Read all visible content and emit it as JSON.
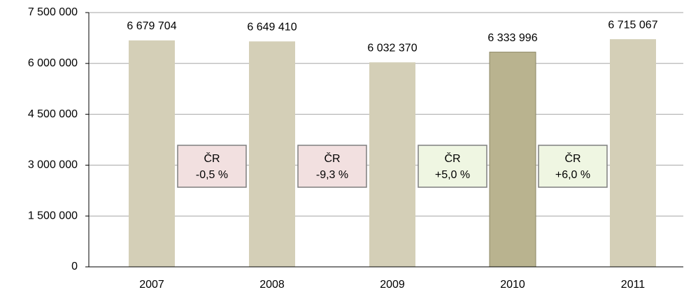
{
  "chart_data": {
    "type": "bar",
    "categories": [
      "2007",
      "2008",
      "2009",
      "2010",
      "2011"
    ],
    "values": [
      6679704,
      6649410,
      6032370,
      6333996,
      6715067
    ],
    "value_labels": [
      "6 679 704",
      "6 649 410",
      "6 032 370",
      "6 333 996",
      "6 715 067"
    ],
    "colors": [
      "#d4cfb7",
      "#d4cfb7",
      "#d4cfb7",
      "#b9b38f",
      "#d4cfb7"
    ],
    "ylim": [
      0,
      7500000
    ],
    "yticks": [
      0,
      {
        "value": 1500000,
        "label": "1 500 000"
      },
      {
        "value": 3000000,
        "label": "3 000 000"
      },
      {
        "value": 4500000,
        "label": "4 500 000"
      },
      {
        "value": 6000000,
        "label": "6 000 000"
      },
      {
        "value": 7500000,
        "label": "7 500 000"
      }
    ],
    "grid": true,
    "annotations": [
      {
        "title": "ČR",
        "text": "-0,5 %",
        "color": "#f2e0e0"
      },
      {
        "title": "ČR",
        "text": "-9,3 %",
        "color": "#f2e0e0"
      },
      {
        "title": "ČR",
        "text": "+5,0 %",
        "color": "#eff6e2"
      },
      {
        "title": "ČR",
        "text": "+6,0 %",
        "color": "#eff6e2"
      }
    ]
  }
}
